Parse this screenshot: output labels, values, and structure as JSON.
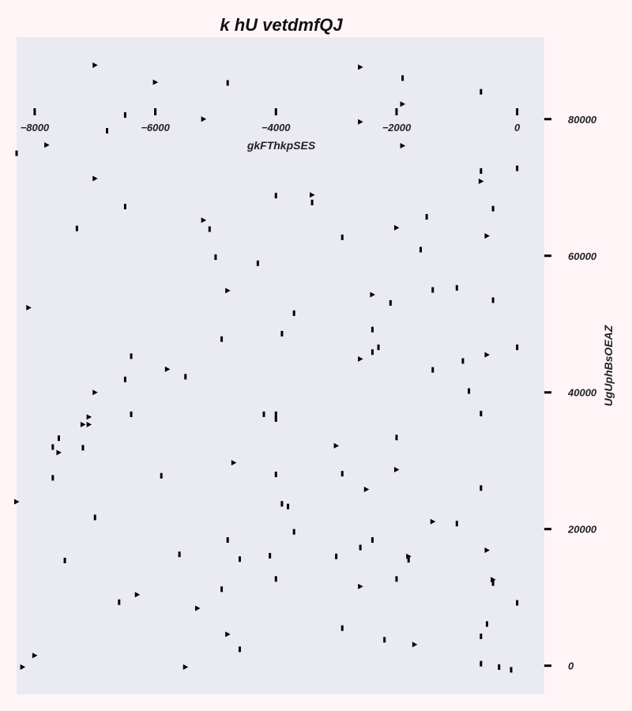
{
  "chart_data": {
    "type": "scatter",
    "title": "k hU vetdmfQJ",
    "xlabel": "gkFThkpSES",
    "ylabel": "UgUphBsOEAZ",
    "xlim": [
      -8300,
      450
    ],
    "ylim": [
      -4200,
      92000
    ],
    "x_ticks": [
      -8000,
      -6000,
      -4000,
      -2000,
      0
    ],
    "x_tick_labels": [
      "−8000",
      "−6000",
      "−4000",
      "−2000",
      "0"
    ],
    "y_ticks": [
      0,
      20000,
      40000,
      60000,
      80000
    ],
    "y_tick_labels": [
      "0",
      "20000",
      "40000",
      "60000",
      "80000"
    ],
    "x_axis_position": "top",
    "y_axis_position": "right",
    "grid": false,
    "legend": "none",
    "colors": {
      "background": "#fff5f7",
      "plot_area": "#eaeaf2",
      "marker": "#000000"
    },
    "series": [
      {
        "marker": "triangle-right",
        "points": [
          [
            -7000,
            87900
          ],
          [
            -6000,
            85400
          ],
          [
            -2600,
            87600
          ],
          [
            -1900,
            82200
          ],
          [
            -7800,
            76200
          ],
          [
            -5200,
            80000
          ],
          [
            -2600,
            79600
          ],
          [
            -1900,
            76100
          ],
          [
            -7000,
            71300
          ],
          [
            -3400,
            68900
          ],
          [
            -600,
            70900
          ],
          [
            -5200,
            65200
          ],
          [
            -2000,
            64100
          ],
          [
            -500,
            62900
          ],
          [
            -8100,
            52400
          ],
          [
            -4800,
            54900
          ],
          [
            -2400,
            54300
          ],
          [
            -2600,
            44900
          ],
          [
            -500,
            45500
          ],
          [
            -5800,
            43400
          ],
          [
            -7000,
            40000
          ],
          [
            -7100,
            36400
          ],
          [
            -7200,
            35300
          ],
          [
            -7100,
            35300
          ],
          [
            -7600,
            31200
          ],
          [
            -3000,
            32200
          ],
          [
            -4700,
            29700
          ],
          [
            -2000,
            28700
          ],
          [
            -2500,
            25800
          ],
          [
            -8300,
            24000
          ],
          [
            -1400,
            21100
          ],
          [
            -500,
            16900
          ],
          [
            -1800,
            16000
          ],
          [
            -400,
            12600
          ],
          [
            -2600,
            11600
          ],
          [
            -6300,
            10400
          ],
          [
            -5300,
            8400
          ],
          [
            -4800,
            4600
          ],
          [
            -8000,
            1500
          ],
          [
            -8200,
            -200
          ],
          [
            -5500,
            -200
          ],
          [
            -1700,
            3100
          ]
        ]
      },
      {
        "marker": "vertical-bar",
        "points": [
          [
            -1900,
            86000
          ],
          [
            -4800,
            85300
          ],
          [
            -600,
            84000
          ],
          [
            -6500,
            80600
          ],
          [
            -6800,
            78300
          ],
          [
            -8300,
            75000
          ],
          [
            -600,
            72400
          ],
          [
            0,
            72800
          ],
          [
            -4000,
            68800
          ],
          [
            -3400,
            67800
          ],
          [
            -6500,
            67200
          ],
          [
            -400,
            66900
          ],
          [
            -1500,
            65700
          ],
          [
            -7300,
            64000
          ],
          [
            -5100,
            63900
          ],
          [
            -2900,
            62700
          ],
          [
            -1600,
            60900
          ],
          [
            -5000,
            59800
          ],
          [
            -4300,
            58900
          ],
          [
            -1000,
            55300
          ],
          [
            -1400,
            55000
          ],
          [
            -400,
            53500
          ],
          [
            -2100,
            53100
          ],
          [
            -3700,
            51600
          ],
          [
            -2400,
            49200
          ],
          [
            -3900,
            48600
          ],
          [
            -4900,
            47800
          ],
          [
            0,
            46600
          ],
          [
            -2300,
            46600
          ],
          [
            -2400,
            45900
          ],
          [
            -6400,
            45300
          ],
          [
            -900,
            44600
          ],
          [
            -1400,
            43300
          ],
          [
            -5500,
            42300
          ],
          [
            -6500,
            41900
          ],
          [
            -800,
            40200
          ],
          [
            -600,
            36900
          ],
          [
            -6400,
            36800
          ],
          [
            -4200,
            36800
          ],
          [
            -4000,
            36800
          ],
          [
            -4000,
            36100
          ],
          [
            -2000,
            33400
          ],
          [
            -7600,
            33300
          ],
          [
            -7700,
            32000
          ],
          [
            -7200,
            31900
          ],
          [
            -2900,
            28100
          ],
          [
            -4000,
            28000
          ],
          [
            -5900,
            27800
          ],
          [
            -7700,
            27500
          ],
          [
            -600,
            26000
          ],
          [
            -3900,
            23700
          ],
          [
            -3800,
            23300
          ],
          [
            -7000,
            21700
          ],
          [
            -1000,
            20800
          ],
          [
            -3700,
            19600
          ],
          [
            -2400,
            18400
          ],
          [
            -4800,
            18400
          ],
          [
            -2600,
            17300
          ],
          [
            -4100,
            16100
          ],
          [
            -5600,
            16300
          ],
          [
            -3000,
            16000
          ],
          [
            -4600,
            15600
          ],
          [
            -1800,
            15500
          ],
          [
            -7500,
            15400
          ],
          [
            -4000,
            12700
          ],
          [
            -2000,
            12700
          ],
          [
            -400,
            12100
          ],
          [
            -4900,
            11200
          ],
          [
            -6600,
            9300
          ],
          [
            0,
            9200
          ],
          [
            -500,
            6100
          ],
          [
            -2900,
            5500
          ],
          [
            -600,
            4300
          ],
          [
            -2200,
            3800
          ],
          [
            -4600,
            2400
          ],
          [
            -600,
            300
          ],
          [
            -300,
            -200
          ],
          [
            -100,
            -600
          ]
        ]
      }
    ]
  }
}
